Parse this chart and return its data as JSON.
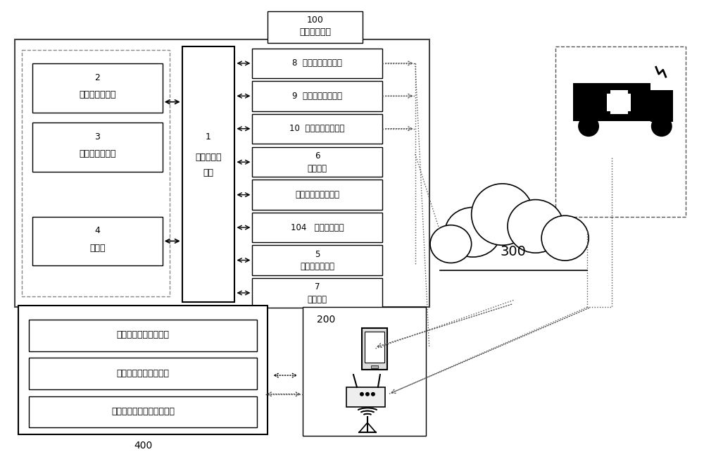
{
  "bg_color": "#ffffff",
  "home_items": [
    "煤气等有害气体传感器",
    "摄像头门锁自动化设备",
    "空调与室内排风自动化设备"
  ]
}
